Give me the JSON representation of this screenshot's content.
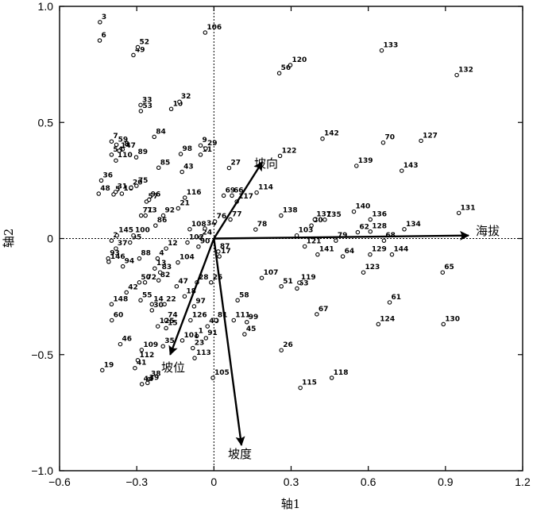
{
  "chart_data": {
    "type": "scatter",
    "xlabel": "轴1",
    "ylabel": "轴2",
    "xlim": [
      -0.6,
      1.2
    ],
    "ylim": [
      -1.0,
      1.0
    ],
    "xticks": [
      -0.6,
      -0.3,
      0,
      0.3,
      0.6,
      0.9,
      1.2
    ],
    "yticks": [
      -1.0,
      -0.5,
      0,
      0.5,
      1.0
    ],
    "xtick_labels": [
      "−0.6",
      "−0.3",
      "0",
      "0.3",
      "0.6",
      "0.9",
      "1.2"
    ],
    "ytick_labels": [
      "−1.0",
      "−0.5",
      "0",
      "0.5",
      "1.0"
    ],
    "vectors": [
      {
        "name": "海拔",
        "x": 0.99,
        "y": 0.013
      },
      {
        "name": "坡向",
        "x": 0.188,
        "y": 0.33
      },
      {
        "name": "坡位",
        "x": -0.17,
        "y": -0.5
      },
      {
        "name": "坡度",
        "x": 0.107,
        "y": -0.89
      }
    ],
    "points": [
      {
        "id": "1",
        "x": -0.067,
        "y": -0.42
      },
      {
        "id": "2",
        "x": -0.398,
        "y": -0.009
      },
      {
        "id": "3",
        "x": -0.443,
        "y": 0.932
      },
      {
        "id": "4",
        "x": -0.219,
        "y": -0.086
      },
      {
        "id": "5",
        "x": -0.39,
        "y": 0.19
      },
      {
        "id": "6",
        "x": -0.444,
        "y": 0.853
      },
      {
        "id": "7",
        "x": -0.398,
        "y": 0.418
      },
      {
        "id": "8",
        "x": -0.355,
        "y": 0.384
      },
      {
        "id": "9",
        "x": -0.052,
        "y": 0.401
      },
      {
        "id": "10",
        "x": -0.166,
        "y": 0.558
      },
      {
        "id": "11",
        "x": -0.052,
        "y": 0.361
      },
      {
        "id": "12",
        "x": -0.186,
        "y": -0.043
      },
      {
        "id": "13",
        "x": -0.23,
        "y": -0.129
      },
      {
        "id": "14",
        "x": -0.241,
        "y": -0.283
      },
      {
        "id": "15",
        "x": -0.186,
        "y": -0.386
      },
      {
        "id": "16",
        "x": -0.358,
        "y": 0.193
      },
      {
        "id": "17",
        "x": 0.021,
        "y": -0.077
      },
      {
        "id": "18",
        "x": -0.114,
        "y": -0.249
      },
      {
        "id": "19",
        "x": -0.434,
        "y": -0.567
      },
      {
        "id": "20",
        "x": -0.322,
        "y": 0.219
      },
      {
        "id": "21",
        "x": -0.139,
        "y": 0.13
      },
      {
        "id": "22",
        "x": -0.192,
        "y": -0.283
      },
      {
        "id": "23",
        "x": -0.082,
        "y": -0.472
      },
      {
        "id": "24",
        "x": -0.052,
        "y": 0.004
      },
      {
        "id": "25",
        "x": -0.011,
        "y": -0.189
      },
      {
        "id": "26",
        "x": 0.262,
        "y": -0.481
      },
      {
        "id": "27",
        "x": 0.059,
        "y": 0.304
      },
      {
        "id": "28",
        "x": -0.066,
        "y": -0.189
      },
      {
        "id": "29",
        "x": -0.032,
        "y": 0.388
      },
      {
        "id": "30",
        "x": -0.241,
        "y": -0.309
      },
      {
        "id": "31",
        "x": -0.382,
        "y": 0.201
      },
      {
        "id": "32",
        "x": -0.134,
        "y": 0.589
      },
      {
        "id": "33",
        "x": -0.285,
        "y": 0.575
      },
      {
        "id": "34",
        "x": -0.035,
        "y": 0.043
      },
      {
        "id": "35",
        "x": -0.198,
        "y": -0.464
      },
      {
        "id": "36",
        "x": -0.438,
        "y": 0.25
      },
      {
        "id": "37",
        "x": -0.381,
        "y": -0.043
      },
      {
        "id": "38",
        "x": -0.251,
        "y": -0.605
      },
      {
        "id": "39",
        "x": -0.258,
        "y": -0.622
      },
      {
        "id": "40",
        "x": -0.025,
        "y": -0.378
      },
      {
        "id": "41",
        "x": -0.307,
        "y": -0.558
      },
      {
        "id": "42",
        "x": -0.34,
        "y": -0.232
      },
      {
        "id": "43",
        "x": -0.124,
        "y": 0.287
      },
      {
        "id": "44",
        "x": -0.28,
        "y": -0.627
      },
      {
        "id": "45",
        "x": 0.119,
        "y": -0.412
      },
      {
        "id": "46",
        "x": -0.364,
        "y": -0.455
      },
      {
        "id": "47",
        "x": -0.145,
        "y": -0.206
      },
      {
        "id": "48",
        "x": -0.448,
        "y": 0.193
      },
      {
        "id": "49",
        "x": -0.313,
        "y": 0.79
      },
      {
        "id": "50",
        "x": -0.29,
        "y": -0.189
      },
      {
        "id": "51",
        "x": 0.262,
        "y": -0.206
      },
      {
        "id": "52",
        "x": -0.296,
        "y": 0.824
      },
      {
        "id": "53",
        "x": -0.284,
        "y": 0.549
      },
      {
        "id": "54",
        "x": -0.398,
        "y": 0.361
      },
      {
        "id": "55",
        "x": -0.285,
        "y": -0.266
      },
      {
        "id": "56",
        "x": 0.254,
        "y": 0.712
      },
      {
        "id": "57",
        "x": -0.262,
        "y": 0.159
      },
      {
        "id": "58",
        "x": 0.092,
        "y": -0.266
      },
      {
        "id": "59",
        "x": -0.379,
        "y": 0.404
      },
      {
        "id": "60",
        "x": -0.397,
        "y": -0.352
      },
      {
        "id": "61",
        "x": 0.683,
        "y": -0.275
      },
      {
        "id": "62",
        "x": 0.559,
        "y": 0.027
      },
      {
        "id": "63",
        "x": 0.323,
        "y": -0.215
      },
      {
        "id": "64",
        "x": 0.501,
        "y": -0.077
      },
      {
        "id": "65",
        "x": 0.889,
        "y": -0.146
      },
      {
        "id": "66",
        "x": 0.07,
        "y": 0.185
      },
      {
        "id": "67",
        "x": 0.4,
        "y": -0.326
      },
      {
        "id": "68",
        "x": 0.661,
        "y": -0.009
      },
      {
        "id": "69",
        "x": 0.038,
        "y": 0.185
      },
      {
        "id": "70",
        "x": 0.658,
        "y": 0.413
      },
      {
        "id": "71",
        "x": -0.283,
        "y": 0.099
      },
      {
        "id": "72",
        "x": -0.268,
        "y": -0.189
      },
      {
        "id": "73",
        "x": -0.266,
        "y": 0.099
      },
      {
        "id": "74",
        "x": -0.186,
        "y": -0.352
      },
      {
        "id": "75",
        "x": -0.301,
        "y": 0.227
      },
      {
        "id": "76",
        "x": 0.004,
        "y": 0.073
      },
      {
        "id": "77",
        "x": 0.064,
        "y": 0.082
      },
      {
        "id": "78",
        "x": 0.162,
        "y": 0.039
      },
      {
        "id": "79",
        "x": 0.474,
        "y": -0.009
      },
      {
        "id": "80",
        "x": 0.379,
        "y": 0.056
      },
      {
        "id": "81",
        "x": 0.008,
        "y": -0.352
      },
      {
        "id": "82",
        "x": -0.215,
        "y": -0.18
      },
      {
        "id": "83",
        "x": -0.209,
        "y": -0.146
      },
      {
        "id": "84",
        "x": -0.232,
        "y": 0.438
      },
      {
        "id": "85",
        "x": -0.215,
        "y": 0.305
      },
      {
        "id": "86",
        "x": -0.227,
        "y": 0.056
      },
      {
        "id": "87",
        "x": 0.017,
        "y": -0.056
      },
      {
        "id": "88",
        "x": -0.29,
        "y": -0.086
      },
      {
        "id": "89",
        "x": -0.302,
        "y": 0.35
      },
      {
        "id": "90",
        "x": -0.06,
        "y": -0.035
      },
      {
        "id": "91",
        "x": -0.031,
        "y": -0.429
      },
      {
        "id": "92",
        "x": -0.197,
        "y": 0.099
      },
      {
        "id": "93",
        "x": -0.411,
        "y": -0.086
      },
      {
        "id": "94",
        "x": -0.354,
        "y": -0.12
      },
      {
        "id": "95",
        "x": -0.326,
        "y": -0.017
      },
      {
        "id": "96",
        "x": -0.252,
        "y": 0.167
      },
      {
        "id": "97",
        "x": -0.077,
        "y": -0.292
      },
      {
        "id": "98",
        "x": -0.129,
        "y": 0.364
      },
      {
        "id": "99",
        "x": 0.128,
        "y": -0.36
      },
      {
        "id": "100",
        "x": -0.313,
        "y": 0.013
      },
      {
        "id": "101",
        "x": -0.123,
        "y": -0.439
      },
      {
        "id": "102",
        "x": -0.103,
        "y": -0.017
      },
      {
        "id": "103",
        "x": 0.322,
        "y": 0.013
      },
      {
        "id": "104",
        "x": -0.14,
        "y": -0.103
      },
      {
        "id": "105",
        "x": -0.004,
        "y": -0.6
      },
      {
        "id": "106",
        "x": -0.034,
        "y": 0.887
      },
      {
        "id": "107",
        "x": 0.186,
        "y": -0.17
      },
      {
        "id": "108",
        "x": -0.094,
        "y": 0.04
      },
      {
        "id": "109",
        "x": -0.281,
        "y": -0.48
      },
      {
        "id": "110",
        "x": -0.381,
        "y": 0.336
      },
      {
        "id": "111",
        "x": 0.077,
        "y": -0.352
      },
      {
        "id": "112",
        "x": -0.296,
        "y": -0.524
      },
      {
        "id": "113",
        "x": -0.075,
        "y": -0.515
      },
      {
        "id": "114",
        "x": 0.166,
        "y": 0.198
      },
      {
        "id": "115",
        "x": 0.336,
        "y": -0.643
      },
      {
        "id": "116",
        "x": -0.113,
        "y": 0.176
      },
      {
        "id": "117",
        "x": 0.089,
        "y": 0.159
      },
      {
        "id": "118",
        "x": 0.458,
        "y": -0.6
      },
      {
        "id": "119",
        "x": 0.332,
        "y": -0.19
      },
      {
        "id": "120",
        "x": 0.297,
        "y": 0.747
      },
      {
        "id": "121",
        "x": 0.353,
        "y": -0.034
      },
      {
        "id": "122",
        "x": 0.257,
        "y": 0.356
      },
      {
        "id": "123",
        "x": 0.581,
        "y": -0.146
      },
      {
        "id": "124",
        "x": 0.639,
        "y": -0.369
      },
      {
        "id": "125",
        "x": -0.218,
        "y": -0.378
      },
      {
        "id": "126",
        "x": -0.091,
        "y": -0.352
      },
      {
        "id": "127",
        "x": 0.805,
        "y": 0.421
      },
      {
        "id": "128",
        "x": 0.608,
        "y": 0.03
      },
      {
        "id": "129",
        "x": 0.607,
        "y": -0.069
      },
      {
        "id": "130",
        "x": 0.892,
        "y": -0.369
      },
      {
        "id": "131",
        "x": 0.952,
        "y": 0.11
      },
      {
        "id": "132",
        "x": 0.944,
        "y": 0.704
      },
      {
        "id": "133",
        "x": 0.652,
        "y": 0.81
      },
      {
        "id": "134",
        "x": 0.74,
        "y": 0.04
      },
      {
        "id": "135",
        "x": 0.431,
        "y": 0.081
      },
      {
        "id": "136",
        "x": 0.608,
        "y": 0.082
      },
      {
        "id": "137",
        "x": 0.392,
        "y": 0.082
      },
      {
        "id": "138",
        "x": 0.261,
        "y": 0.099
      },
      {
        "id": "139",
        "x": 0.554,
        "y": 0.313
      },
      {
        "id": "140",
        "x": 0.544,
        "y": 0.116
      },
      {
        "id": "141",
        "x": 0.403,
        "y": -0.069
      },
      {
        "id": "142",
        "x": 0.422,
        "y": 0.43
      },
      {
        "id": "143",
        "x": 0.73,
        "y": 0.292
      },
      {
        "id": "144",
        "x": 0.692,
        "y": -0.069
      },
      {
        "id": "145",
        "x": -0.377,
        "y": 0.013
      },
      {
        "id": "146",
        "x": -0.409,
        "y": -0.1
      },
      {
        "id": "147",
        "x": -0.368,
        "y": 0.378
      },
      {
        "id": "148",
        "x": -0.398,
        "y": -0.283
      }
    ]
  }
}
